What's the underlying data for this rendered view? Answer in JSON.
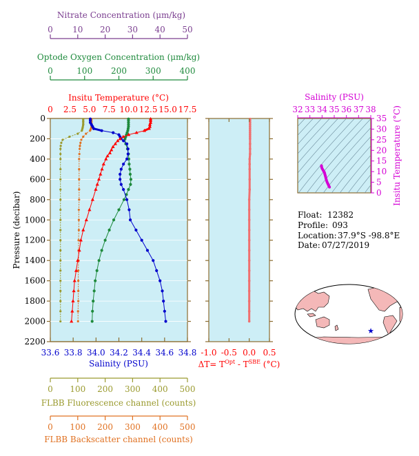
{
  "colors": {
    "nitrate": "#7a3d8f",
    "oxygen": "#1e8a3c",
    "temperature": "#ff0000",
    "salinity": "#0000cc",
    "fluorescence": "#9a9a2e",
    "backscatter": "#e07020",
    "delta": "#f07070",
    "ts_salinity": "#d400d4",
    "panel_bg": "#cdeef6",
    "frame": "#8b6b2e"
  },
  "chart_data": [
    {
      "type": "line",
      "name": "profile-main",
      "ylabel": "Pressure (decibar)",
      "ylim": [
        2200,
        0
      ],
      "y_ticks": [
        0,
        200,
        400,
        600,
        800,
        1000,
        1200,
        1400,
        1600,
        1800,
        2000,
        2200
      ],
      "axes": {
        "nitrate": {
          "label": "Nitrate Concentration (μm/kg)",
          "range": [
            0,
            50
          ],
          "ticks": [
            0,
            10,
            20,
            30,
            40,
            50
          ]
        },
        "oxygen": {
          "label": "Optode Oxygen Concentration (μm/kg)",
          "range": [
            0,
            400
          ],
          "ticks": [
            0,
            100,
            200,
            300,
            400
          ]
        },
        "temperature": {
          "label": "Insitu Temperature (°C)",
          "range": [
            0,
            17.5
          ],
          "ticks": [
            "0",
            "2.5",
            "5.0",
            "7.5",
            "10.0",
            "12.5",
            "15.0",
            "17.5"
          ]
        },
        "salinity": {
          "label": "Salinity (PSU)",
          "range": [
            33.6,
            34.8
          ],
          "ticks": [
            "33.6",
            "33.8",
            "34.0",
            "34.2",
            "34.4",
            "34.6",
            "34.8"
          ]
        },
        "fluorescence": {
          "label": "FLBB Fluorescence channel (counts)",
          "range": [
            0,
            500
          ],
          "ticks": [
            0,
            100,
            200,
            300,
            400,
            500
          ]
        },
        "backscatter": {
          "label": "FLBB Backscatter channel (counts)",
          "range": [
            0,
            500
          ],
          "ticks": [
            0,
            100,
            200,
            300,
            400,
            500
          ]
        }
      },
      "series": [
        {
          "key": "temperature",
          "p": [
            5,
            20,
            40,
            60,
            80,
            100,
            120,
            140,
            160,
            180,
            200,
            220,
            250,
            280,
            310,
            340,
            370,
            400,
            450,
            500,
            550,
            600,
            650,
            700,
            800,
            900,
            1000,
            1100,
            1200,
            1300,
            1400,
            1500,
            1600,
            1700,
            1800,
            1900,
            2000
          ],
          "values": [
            12.8,
            12.8,
            12.8,
            12.7,
            12.7,
            12.6,
            12.0,
            11.0,
            10.0,
            9.3,
            8.9,
            8.6,
            8.3,
            8.0,
            7.8,
            7.6,
            7.3,
            7.1,
            6.8,
            6.6,
            6.4,
            6.2,
            6.0,
            5.8,
            5.4,
            5.0,
            4.6,
            4.2,
            3.9,
            3.7,
            3.5,
            3.3,
            3.1,
            3.0,
            2.9,
            2.8,
            2.7
          ]
        },
        {
          "key": "salinity",
          "p": [
            5,
            20,
            40,
            60,
            80,
            100,
            120,
            140,
            160,
            180,
            200,
            220,
            250,
            300,
            350,
            400,
            450,
            500,
            550,
            600,
            650,
            700,
            800,
            900,
            1000,
            1100,
            1200,
            1300,
            1400,
            1500,
            1600,
            1700,
            1800,
            1900,
            2000
          ],
          "values": [
            33.95,
            33.95,
            33.95,
            33.96,
            33.97,
            33.98,
            34.05,
            34.15,
            34.2,
            34.21,
            34.22,
            34.24,
            34.27,
            34.28,
            34.28,
            34.27,
            34.24,
            34.22,
            34.21,
            34.21,
            34.22,
            34.24,
            34.27,
            34.29,
            34.3,
            34.35,
            34.4,
            34.45,
            34.5,
            34.53,
            34.56,
            34.58,
            34.59,
            34.6,
            34.61
          ]
        },
        {
          "key": "oxygen",
          "p": [
            5,
            20,
            40,
            60,
            80,
            100,
            120,
            140,
            160,
            180,
            200,
            250,
            300,
            350,
            400,
            450,
            500,
            550,
            600,
            650,
            700,
            750,
            800,
            900,
            1000,
            1100,
            1200,
            1300,
            1400,
            1500,
            1600,
            1700,
            1800,
            1900,
            2000
          ],
          "values": [
            228,
            228,
            228,
            228,
            228,
            227,
            226,
            224,
            222,
            220,
            218,
            220,
            225,
            228,
            229,
            230,
            232,
            233,
            235,
            234,
            228,
            222,
            215,
            200,
            185,
            172,
            160,
            150,
            142,
            136,
            131,
            128,
            125,
            123,
            122
          ]
        },
        {
          "key": "backscatter",
          "p": [
            5,
            30,
            60,
            90,
            120,
            150,
            180,
            210,
            240,
            270,
            300,
            350,
            400,
            500,
            600,
            700,
            800,
            900,
            1000,
            1100,
            1200,
            1300,
            1400,
            1500,
            1600,
            1700,
            1800,
            1900,
            2000
          ],
          "values": [
            150,
            150,
            150,
            150,
            145,
            130,
            120,
            113,
            110,
            108,
            107,
            106,
            105,
            105,
            105,
            105,
            105,
            104,
            104,
            104,
            103,
            103,
            103,
            102,
            102,
            102,
            102,
            101,
            101
          ]
        },
        {
          "key": "fluorescence",
          "p": [
            5,
            30,
            60,
            90,
            120,
            150,
            180,
            210,
            240,
            270,
            300,
            350,
            400,
            500,
            600,
            700,
            800,
            900,
            1000,
            1100,
            1200,
            1300,
            1400,
            1500,
            1600,
            1700,
            1800,
            1900,
            2000
          ],
          "values": [
            120,
            120,
            120,
            118,
            115,
            100,
            70,
            45,
            40,
            38,
            37,
            37,
            37,
            37,
            37,
            37,
            37,
            37,
            37,
            37,
            37,
            37,
            37,
            37,
            37,
            37,
            37,
            37,
            37
          ]
        }
      ]
    },
    {
      "type": "line",
      "name": "delta-T",
      "xlabel_parts": [
        "ΔT= T",
        "Opt",
        " - T",
        "SBE",
        " (°C)"
      ],
      "xlim": [
        -1.0,
        0.5
      ],
      "x_ticks": [
        "-1.0",
        "-0.5",
        "0.0",
        "0.5"
      ],
      "ylim": [
        2200,
        0
      ],
      "series": [
        {
          "key": "delta",
          "p": [
            5,
            20,
            40,
            60,
            80,
            100,
            120,
            140,
            160,
            180,
            200,
            250,
            300,
            350,
            400,
            450,
            500,
            600,
            700,
            800,
            900,
            1000,
            1100,
            1200,
            1300,
            1400,
            1500,
            1600,
            1700,
            1800,
            1900,
            2000
          ],
          "values": [
            0.02,
            0.02,
            0.02,
            0.02,
            0.02,
            0.02,
            0.02,
            0.02,
            0.02,
            0.02,
            0.02,
            0.02,
            0.02,
            0.02,
            0.01,
            0.01,
            0.01,
            0.01,
            0.01,
            0.0,
            0.0,
            0.0,
            0.0,
            0.0,
            0.0,
            0.0,
            0.0,
            0.0,
            0.0,
            0.0,
            0.0,
            0.0
          ]
        }
      ]
    },
    {
      "type": "scatter",
      "name": "TS-diagram",
      "xlabel": "Salinity (PSU)",
      "ylabel": "Insitu Temperature (°C)",
      "xlim": [
        32,
        38
      ],
      "ylim": [
        0,
        35
      ],
      "x_ticks": [
        "32",
        "33",
        "34",
        "35",
        "36",
        "37",
        "38"
      ],
      "y_ticks": [
        "0",
        "5",
        "10",
        "15",
        "20",
        "25",
        "30",
        "35"
      ],
      "series": [
        {
          "key": "ts",
          "x": [
            33.95,
            33.96,
            33.97,
            34.0,
            34.05,
            34.1,
            34.15,
            34.2,
            34.22,
            34.24,
            34.26,
            34.28,
            34.3,
            34.32,
            34.35,
            34.38,
            34.42,
            34.46,
            34.5,
            34.54,
            34.58,
            34.61
          ],
          "y": [
            12.8,
            12.4,
            12.0,
            11.5,
            11.0,
            10.5,
            10.0,
            9.5,
            9.0,
            8.6,
            8.2,
            7.8,
            7.3,
            6.8,
            6.2,
            5.6,
            5.0,
            4.5,
            4.0,
            3.5,
            3.0,
            2.7
          ]
        }
      ]
    }
  ],
  "info": {
    "float_label": "Float:",
    "float_value": "12382",
    "profile_label": "Profile:",
    "profile_value": "093",
    "location_label": "Location:",
    "location_value": "37.9°S  -98.8°E",
    "date_label": "Date:",
    "date_value": "07/27/2019"
  },
  "map": {
    "marker_lat": -37.9,
    "marker_lon": -98.8
  }
}
